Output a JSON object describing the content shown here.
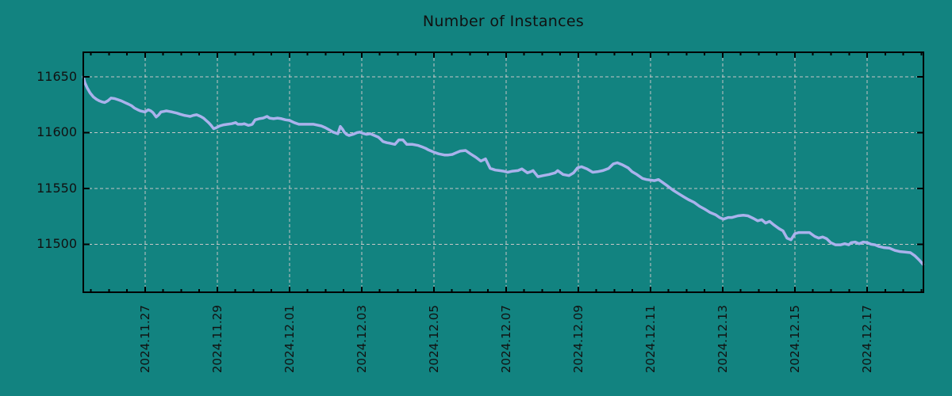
{
  "chart_data": {
    "type": "line",
    "title": "Number of Instances",
    "legend": "none",
    "grid": "dashed",
    "colors": {
      "background": "#128380",
      "line": "#aab2ec",
      "grid": "#c6c6c6",
      "axis": "#000000",
      "text": "#111111"
    },
    "x_axis": {
      "tick_labels": [
        "2024.11.27",
        "2024.11.29",
        "2024.12.01",
        "2024.12.03",
        "2024.12.05",
        "2024.12.07",
        "2024.12.09",
        "2024.12.11",
        "2024.12.13",
        "2024.12.15",
        "2024.12.17"
      ],
      "tick_days": [
        2,
        4,
        6,
        8,
        10,
        12,
        14,
        16,
        18,
        20,
        22
      ],
      "minor_tick_interval_days": 0.5,
      "range_days": [
        0.29,
        23.56
      ]
    },
    "y_axis": {
      "tick_labels": [
        "11500",
        "11550",
        "11600",
        "11650"
      ],
      "tick_values": [
        11500,
        11550,
        11600,
        11650
      ],
      "range": [
        11457,
        11672
      ]
    },
    "series": [
      {
        "name": "instances",
        "points": [
          [
            0.29,
            11650
          ],
          [
            0.33,
            11645
          ],
          [
            0.4,
            11640
          ],
          [
            0.48,
            11635.5
          ],
          [
            0.57,
            11632
          ],
          [
            0.65,
            11630
          ],
          [
            0.73,
            11628.5
          ],
          [
            0.81,
            11627.5
          ],
          [
            0.88,
            11627
          ],
          [
            0.97,
            11628.5
          ],
          [
            1.06,
            11631
          ],
          [
            1.16,
            11630.5
          ],
          [
            1.25,
            11629.5
          ],
          [
            1.34,
            11628.5
          ],
          [
            1.44,
            11627
          ],
          [
            1.54,
            11625.5
          ],
          [
            1.63,
            11624
          ],
          [
            1.71,
            11622
          ],
          [
            1.8,
            11620.5
          ],
          [
            1.87,
            11619.5
          ],
          [
            2.0,
            11618.5
          ],
          [
            2.09,
            11620.5
          ],
          [
            2.16,
            11619.5
          ],
          [
            2.22,
            11618
          ],
          [
            2.31,
            11614
          ],
          [
            2.38,
            11616
          ],
          [
            2.44,
            11618.5
          ],
          [
            2.52,
            11619
          ],
          [
            2.59,
            11619.5
          ],
          [
            2.67,
            11619
          ],
          [
            2.75,
            11618.5
          ],
          [
            2.88,
            11617.5
          ],
          [
            2.97,
            11616.5
          ],
          [
            3.08,
            11615.5
          ],
          [
            3.17,
            11615
          ],
          [
            3.25,
            11614.5
          ],
          [
            3.34,
            11615.5
          ],
          [
            3.43,
            11616
          ],
          [
            3.54,
            11614.5
          ],
          [
            3.62,
            11613
          ],
          [
            3.69,
            11611
          ],
          [
            3.76,
            11609
          ],
          [
            3.83,
            11606.5
          ],
          [
            3.9,
            11603.5
          ],
          [
            3.98,
            11604.5
          ],
          [
            4.07,
            11606
          ],
          [
            4.18,
            11607
          ],
          [
            4.29,
            11607.5
          ],
          [
            4.4,
            11608
          ],
          [
            4.51,
            11609
          ],
          [
            4.57,
            11607.5
          ],
          [
            4.68,
            11607.5
          ],
          [
            4.75,
            11608
          ],
          [
            4.86,
            11606.5
          ],
          [
            4.93,
            11607
          ],
          [
            4.97,
            11607.5
          ],
          [
            5.05,
            11611.5
          ],
          [
            5.16,
            11612.5
          ],
          [
            5.27,
            11613
          ],
          [
            5.38,
            11614.5
          ],
          [
            5.45,
            11613
          ],
          [
            5.56,
            11612.5
          ],
          [
            5.67,
            11613
          ],
          [
            5.78,
            11612.5
          ],
          [
            5.89,
            11611.5
          ],
          [
            6.0,
            11611
          ],
          [
            6.13,
            11609
          ],
          [
            6.26,
            11607.5
          ],
          [
            6.4,
            11607.5
          ],
          [
            6.55,
            11607.5
          ],
          [
            6.67,
            11607.5
          ],
          [
            6.88,
            11606
          ],
          [
            6.99,
            11604.5
          ],
          [
            7.1,
            11602.5
          ],
          [
            7.21,
            11600.5
          ],
          [
            7.34,
            11599
          ],
          [
            7.41,
            11605.5
          ],
          [
            7.47,
            11603
          ],
          [
            7.52,
            11600.5
          ],
          [
            7.58,
            11598.5
          ],
          [
            7.65,
            11597.5
          ],
          [
            7.76,
            11598.5
          ],
          [
            7.87,
            11600
          ],
          [
            7.95,
            11600.5
          ],
          [
            8.02,
            11599.5
          ],
          [
            8.13,
            11598.5
          ],
          [
            8.24,
            11599
          ],
          [
            8.35,
            11597.5
          ],
          [
            8.46,
            11596
          ],
          [
            8.53,
            11594
          ],
          [
            8.59,
            11592
          ],
          [
            8.7,
            11591
          ],
          [
            8.79,
            11590.5
          ],
          [
            8.92,
            11589.5
          ],
          [
            9.03,
            11593.5
          ],
          [
            9.14,
            11593.5
          ],
          [
            9.25,
            11589.5
          ],
          [
            9.41,
            11589.5
          ],
          [
            9.57,
            11588.5
          ],
          [
            9.69,
            11587
          ],
          [
            9.77,
            11586
          ],
          [
            9.85,
            11584.5
          ],
          [
            10.0,
            11582.5
          ],
          [
            10.13,
            11581
          ],
          [
            10.29,
            11580
          ],
          [
            10.4,
            11580
          ],
          [
            10.51,
            11580.5
          ],
          [
            10.62,
            11582
          ],
          [
            10.73,
            11583.5
          ],
          [
            10.88,
            11584
          ],
          [
            11.01,
            11581
          ],
          [
            11.16,
            11578
          ],
          [
            11.3,
            11574.5
          ],
          [
            11.43,
            11576.5
          ],
          [
            11.56,
            11568
          ],
          [
            11.7,
            11566.5
          ],
          [
            11.82,
            11566
          ],
          [
            11.93,
            11565.5
          ],
          [
            12.04,
            11564.5
          ],
          [
            12.18,
            11565.5
          ],
          [
            12.33,
            11566
          ],
          [
            12.44,
            11567.5
          ],
          [
            12.59,
            11564
          ],
          [
            12.68,
            11565
          ],
          [
            12.75,
            11566
          ],
          [
            12.88,
            11560.5
          ],
          [
            13.03,
            11561.5
          ],
          [
            13.19,
            11562.5
          ],
          [
            13.36,
            11564
          ],
          [
            13.43,
            11566
          ],
          [
            13.58,
            11562.5
          ],
          [
            13.74,
            11561.5
          ],
          [
            13.87,
            11564
          ],
          [
            13.98,
            11568.5
          ],
          [
            14.09,
            11569.5
          ],
          [
            14.24,
            11567.5
          ],
          [
            14.4,
            11564.5
          ],
          [
            14.53,
            11565
          ],
          [
            14.68,
            11566
          ],
          [
            14.84,
            11568
          ],
          [
            14.97,
            11572
          ],
          [
            15.08,
            11573
          ],
          [
            15.23,
            11571
          ],
          [
            15.38,
            11568.5
          ],
          [
            15.49,
            11565
          ],
          [
            15.62,
            11562.5
          ],
          [
            15.78,
            11559
          ],
          [
            15.89,
            11558
          ],
          [
            16.0,
            11557.5
          ],
          [
            16.11,
            11557
          ],
          [
            16.22,
            11558
          ],
          [
            16.33,
            11555.5
          ],
          [
            16.48,
            11552
          ],
          [
            16.62,
            11548.5
          ],
          [
            16.77,
            11545.5
          ],
          [
            16.92,
            11542.5
          ],
          [
            17.05,
            11540
          ],
          [
            17.21,
            11537.5
          ],
          [
            17.36,
            11534
          ],
          [
            17.5,
            11531.5
          ],
          [
            17.65,
            11528.5
          ],
          [
            17.8,
            11526.5
          ],
          [
            17.91,
            11524
          ],
          [
            18.02,
            11522.5
          ],
          [
            18.15,
            11524
          ],
          [
            18.26,
            11524
          ],
          [
            18.42,
            11525.5
          ],
          [
            18.57,
            11526
          ],
          [
            18.7,
            11525.5
          ],
          [
            18.86,
            11523
          ],
          [
            18.97,
            11521
          ],
          [
            19.08,
            11522
          ],
          [
            19.19,
            11519
          ],
          [
            19.3,
            11520.5
          ],
          [
            19.41,
            11517.5
          ],
          [
            19.56,
            11514
          ],
          [
            19.67,
            11512
          ],
          [
            19.78,
            11505.5
          ],
          [
            19.89,
            11504
          ],
          [
            20.0,
            11509.5
          ],
          [
            20.11,
            11510.5
          ],
          [
            20.24,
            11510.5
          ],
          [
            20.4,
            11510.5
          ],
          [
            20.55,
            11507
          ],
          [
            20.66,
            11505.5
          ],
          [
            20.77,
            11506.5
          ],
          [
            20.88,
            11505
          ],
          [
            20.99,
            11501.5
          ],
          [
            21.12,
            11499.5
          ],
          [
            21.27,
            11499.5
          ],
          [
            21.38,
            11500.5
          ],
          [
            21.49,
            11499.5
          ],
          [
            21.56,
            11501.5
          ],
          [
            21.67,
            11502
          ],
          [
            21.78,
            11500.5
          ],
          [
            21.89,
            11502
          ],
          [
            22.0,
            11501.5
          ],
          [
            22.11,
            11500
          ],
          [
            22.22,
            11499.5
          ],
          [
            22.33,
            11498
          ],
          [
            22.46,
            11497
          ],
          [
            22.62,
            11496.5
          ],
          [
            22.77,
            11494.5
          ],
          [
            22.9,
            11493.5
          ],
          [
            23.05,
            11493
          ],
          [
            23.2,
            11492.5
          ],
          [
            23.33,
            11489.5
          ],
          [
            23.44,
            11486
          ],
          [
            23.55,
            11482
          ]
        ]
      }
    ]
  }
}
